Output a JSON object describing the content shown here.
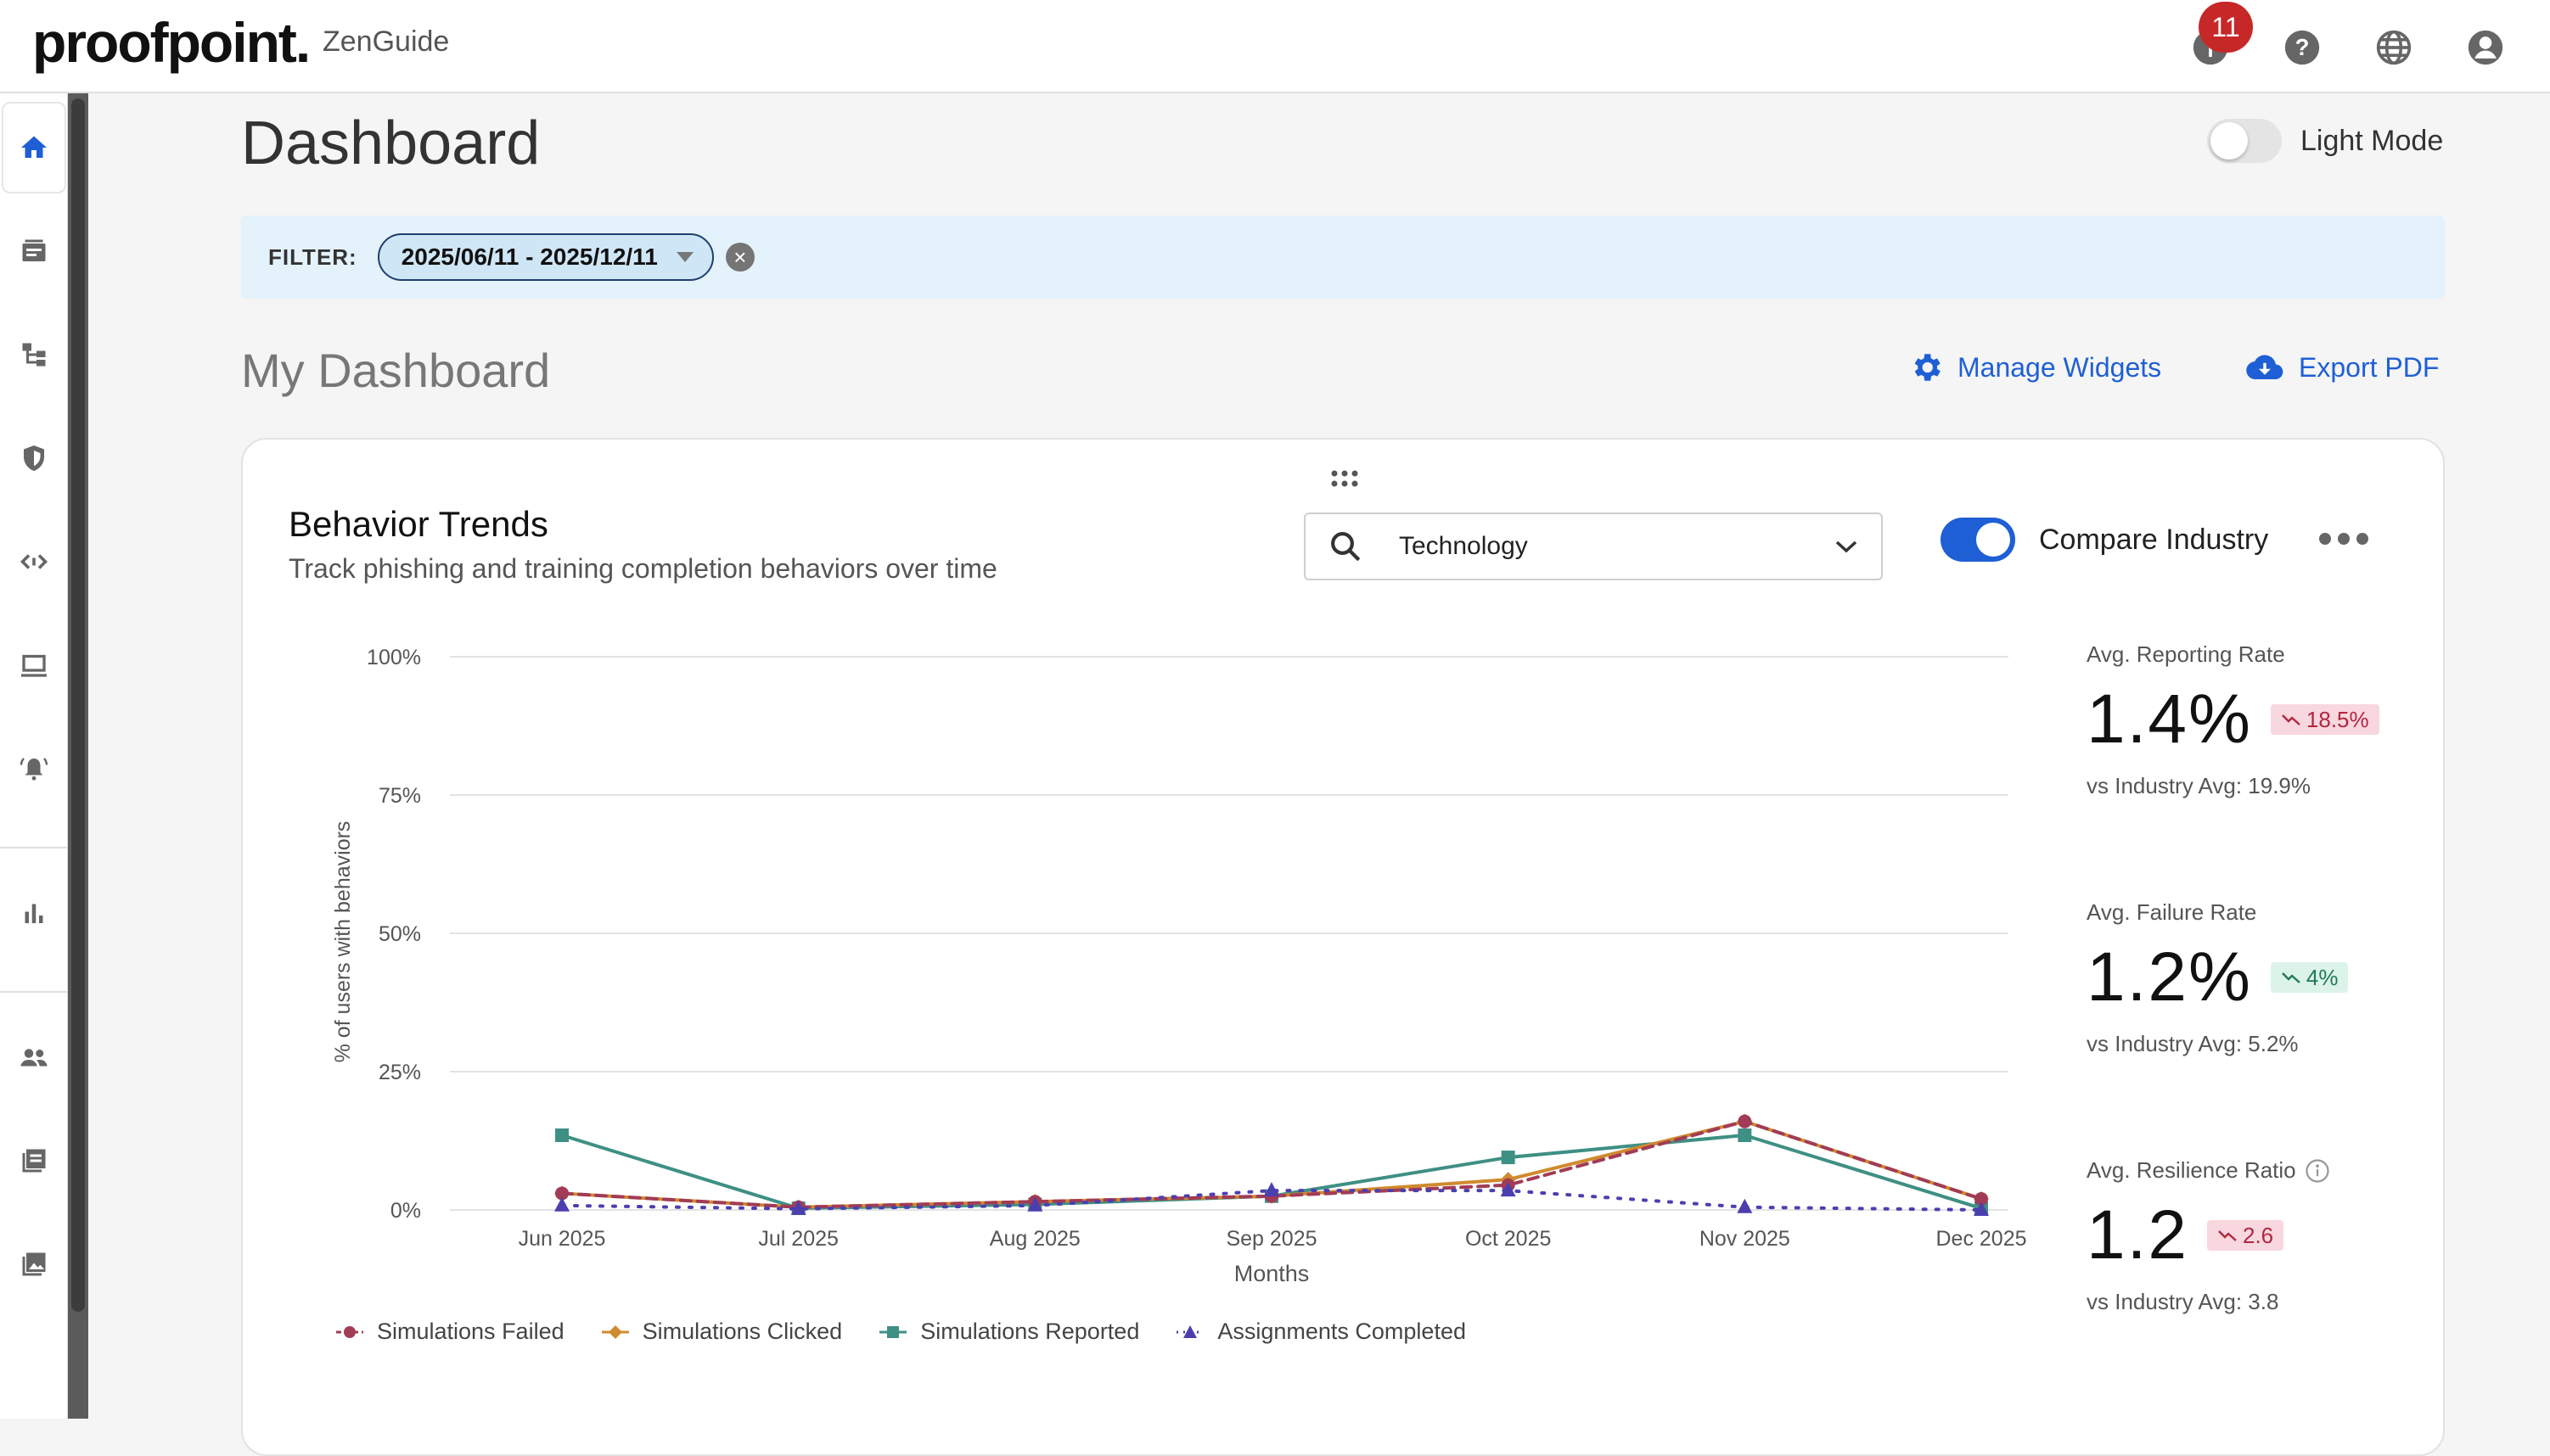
{
  "header": {
    "logo": "proofpoint.",
    "product": "ZenGuide",
    "notification_count": "11"
  },
  "sidebar": {
    "items": [
      "home-icon",
      "catalog-icon",
      "hierarchy-icon",
      "shield-icon",
      "code-icon",
      "computer-icon",
      "alert-icon",
      "bar-chart-icon",
      "people-icon",
      "library-icon",
      "photo-icon"
    ]
  },
  "page": {
    "title": "Dashboard",
    "light_mode_label": "Light Mode"
  },
  "filter": {
    "label": "FILTER:",
    "date_range": "2025/06/11 - 2025/12/11"
  },
  "dashboard": {
    "title": "My Dashboard",
    "manage_widgets": "Manage Widgets",
    "export_pdf": "Export PDF"
  },
  "widget": {
    "title": "Behavior Trends",
    "subtitle": "Track phishing and training completion behaviors over time",
    "industry": "Technology",
    "compare_label": "Compare Industry"
  },
  "stats": {
    "reporting": {
      "label": "Avg. Reporting Rate",
      "value": "1.4%",
      "delta": "18.5%",
      "sub": "vs Industry Avg: 19.9%"
    },
    "failure": {
      "label": "Avg. Failure Rate",
      "value": "1.2%",
      "delta": "4%",
      "sub": "vs Industry Avg: 5.2%"
    },
    "resilience": {
      "label": "Avg. Resilience Ratio",
      "value": "1.2",
      "delta": "2.6",
      "sub": "vs Industry Avg: 3.8"
    }
  },
  "colors": {
    "accent": "#1f5fd6",
    "failed": "#a23b56",
    "clicked": "#d08a2e",
    "reported": "#3e8f84",
    "completed": "#4b3fb0"
  },
  "chart_data": {
    "type": "line",
    "xlabel": "Months",
    "ylabel": "% of users with behaviors",
    "categories": [
      "Jun 2025",
      "Jul 2025",
      "Aug 2025",
      "Sep 2025",
      "Oct 2025",
      "Nov 2025",
      "Dec 2025"
    ],
    "y_ticks": [
      "0%",
      "25%",
      "50%",
      "75%",
      "100%"
    ],
    "ylim": [
      0,
      100
    ],
    "grid": true,
    "legend": "bottom",
    "series": [
      {
        "name": "Simulations Failed",
        "values": [
          3,
          0.5,
          1.5,
          2.5,
          4.5,
          16,
          2
        ],
        "marker": "circle",
        "dash": "dashed"
      },
      {
        "name": "Simulations Clicked",
        "values": [
          3,
          0.5,
          1.5,
          2.5,
          5.5,
          16,
          2
        ],
        "marker": "diamond",
        "dash": "solid"
      },
      {
        "name": "Simulations Reported",
        "values": [
          13.5,
          0.3,
          1.0,
          2.5,
          9.5,
          13.5,
          0.3
        ],
        "marker": "square",
        "dash": "solid"
      },
      {
        "name": "Assignments Completed",
        "values": [
          0.8,
          0.2,
          0.8,
          3.5,
          3.5,
          0.5,
          0
        ],
        "marker": "triangle",
        "dash": "dotted"
      }
    ]
  }
}
